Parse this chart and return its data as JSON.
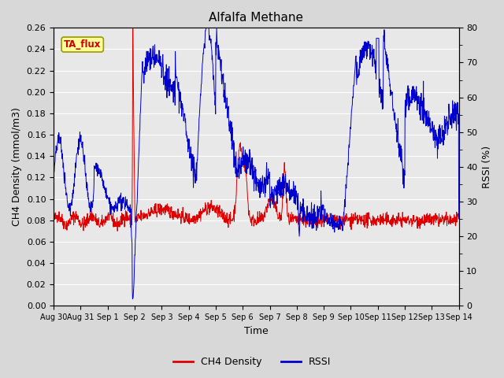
{
  "title": "Alfalfa Methane",
  "xlabel": "Time",
  "ylabel_left": "CH4 Density (mmol/m3)",
  "ylabel_right": "RSSI (%)",
  "ylim_left": [
    0.0,
    0.26
  ],
  "ylim_right": [
    0,
    80
  ],
  "yticks_left": [
    0.0,
    0.02,
    0.04,
    0.06,
    0.08,
    0.1,
    0.12,
    0.14,
    0.16,
    0.18,
    0.2,
    0.22,
    0.24,
    0.26
  ],
  "yticks_right_major": [
    0,
    10,
    20,
    30,
    40,
    50,
    60,
    70,
    80
  ],
  "xtick_labels": [
    "Aug 30",
    "Aug 31",
    "Sep 1",
    "Sep 2",
    "Sep 3",
    "Sep 4",
    "Sep 5",
    "Sep 6",
    "Sep 7",
    "Sep 8",
    "Sep 9",
    "Sep 10",
    "Sep 11",
    "Sep 12",
    "Sep 13",
    "Sep 14"
  ],
  "annotation_text": "TA_flux",
  "annotation_color": "#cc0000",
  "annotation_bg": "#ffff99",
  "annotation_border": "#999900",
  "ch4_color": "#dd0000",
  "rssi_color": "#0000cc",
  "fig_bg": "#d8d8d8",
  "plot_bg": "#e8e8e8",
  "grid_color": "#ffffff",
  "legend_ch4": "CH4 Density",
  "legend_rssi": "RSSI",
  "title_fontsize": 11,
  "axis_label_fontsize": 9,
  "tick_fontsize": 8
}
